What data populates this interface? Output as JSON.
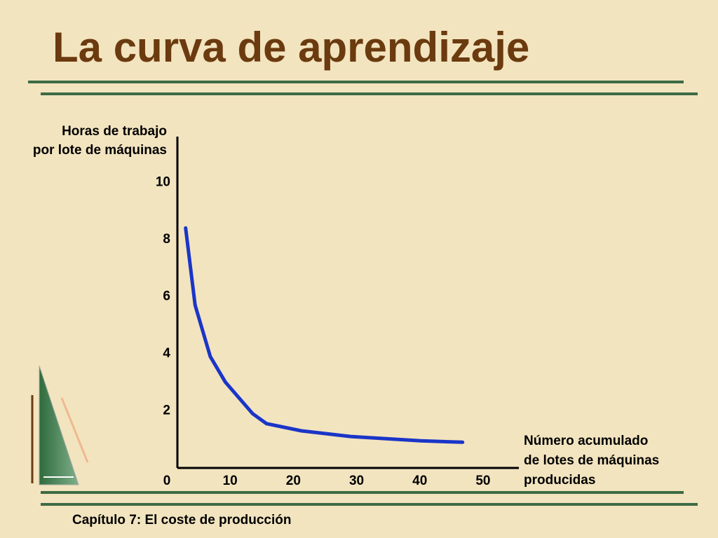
{
  "slide": {
    "title": "La curva de aprendizaje",
    "footer": "Capítulo 7: El coste de producción"
  },
  "chart_data": {
    "type": "line",
    "y_label": [
      "Horas de trabajo",
      "por lote de máquinas"
    ],
    "x_label": [
      "Número acumulado",
      "de lotes de máquinas",
      "producidas"
    ],
    "x": [
      1.3,
      2.8,
      5.2,
      7.6,
      11.9,
      14.1,
      19.6,
      27.4,
      38.5,
      45.1
    ],
    "series": [
      {
        "color": "#1a35c8",
        "values": [
          8.4,
          5.7,
          3.9,
          3.0,
          1.9,
          1.55,
          1.3,
          1.1,
          0.95,
          0.9
        ]
      }
    ],
    "xlim": [
      0,
      54
    ],
    "ylim": [
      0,
      11.6
    ],
    "xticks": [
      0,
      10,
      20,
      30,
      40,
      50
    ],
    "yticks": [
      2,
      4,
      6,
      8,
      10
    ]
  }
}
